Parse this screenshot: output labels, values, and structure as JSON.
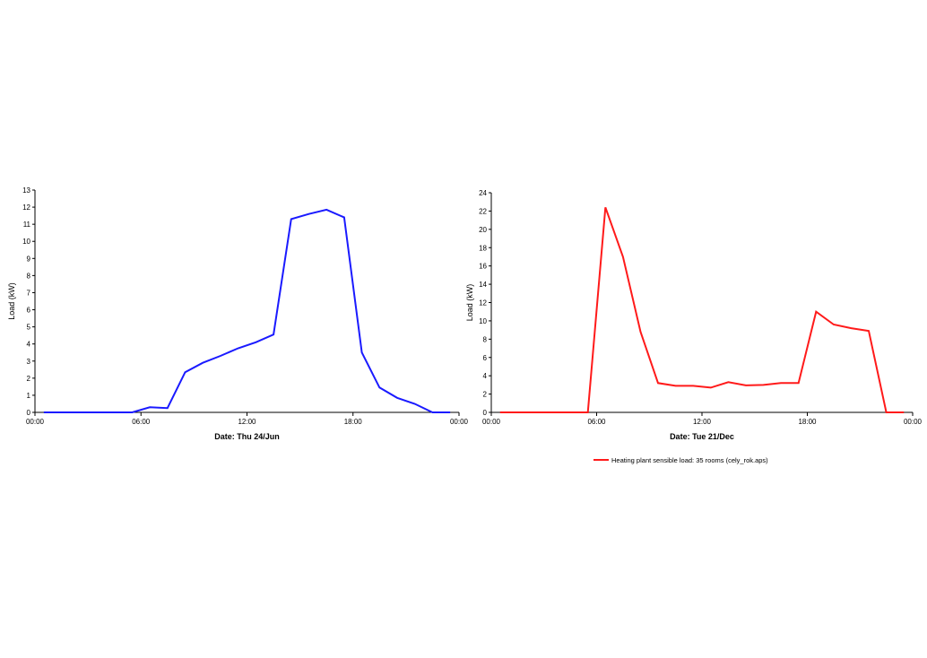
{
  "chart_data": [
    {
      "type": "line",
      "title": "",
      "xlabel": "Date: Thu 24/Jun",
      "ylabel": "Load (kW)",
      "ylim": [
        0,
        13
      ],
      "yticks": [
        0,
        1,
        2,
        3,
        4,
        5,
        6,
        7,
        8,
        9,
        10,
        11,
        12,
        13
      ],
      "xlim": [
        0,
        24
      ],
      "xticks": [
        {
          "v": 0,
          "label": "00:00"
        },
        {
          "v": 6,
          "label": "06:00"
        },
        {
          "v": 12,
          "label": "12:00"
        },
        {
          "v": 18,
          "label": "18:00"
        },
        {
          "v": 24,
          "label": "00:00"
        }
      ],
      "grid": false,
      "series": [
        {
          "color": "#1a1aff",
          "x": [
            0.5,
            1.5,
            2.5,
            3.5,
            4.5,
            5.5,
            6.5,
            7.5,
            8.5,
            9.5,
            10.5,
            11.5,
            12.5,
            13.5,
            14.5,
            15.5,
            16.5,
            17.5,
            18.5,
            19.5,
            20.5,
            21.5,
            22.5,
            23.5
          ],
          "y": [
            0,
            0,
            0,
            0,
            0,
            0,
            0.3,
            0.25,
            2.35,
            2.9,
            3.3,
            3.75,
            4.1,
            4.55,
            11.3,
            11.6,
            11.85,
            11.4,
            3.5,
            1.45,
            0.85,
            0.5,
            0,
            0
          ]
        }
      ]
    },
    {
      "type": "line",
      "title": "",
      "xlabel": "Date: Tue 21/Dec",
      "ylabel": "Load (kW)",
      "ylim": [
        0,
        24
      ],
      "yticks": [
        0,
        2,
        4,
        6,
        8,
        10,
        12,
        14,
        16,
        18,
        20,
        22,
        24
      ],
      "xlim": [
        0,
        24
      ],
      "xticks": [
        {
          "v": 0,
          "label": "00:00"
        },
        {
          "v": 6,
          "label": "06:00"
        },
        {
          "v": 12,
          "label": "12:00"
        },
        {
          "v": 18,
          "label": "18:00"
        },
        {
          "v": 24,
          "label": "00:00"
        }
      ],
      "grid": false,
      "legend_position": "bottom",
      "series": [
        {
          "name": "Heating plant sensible load: 35 rooms (cely_rok.aps)",
          "color": "#ff1a1a",
          "x": [
            0.5,
            1.5,
            2.5,
            3.5,
            4.5,
            5.5,
            6.5,
            7.5,
            8.5,
            9.5,
            10.5,
            11.5,
            12.5,
            13.5,
            14.5,
            15.5,
            16.5,
            17.5,
            18.5,
            19.5,
            20.5,
            21.5,
            22.5,
            23.5
          ],
          "y": [
            0,
            0,
            0,
            0,
            0,
            0,
            22.4,
            17,
            8.8,
            3.2,
            2.9,
            2.9,
            2.7,
            3.3,
            2.95,
            3.0,
            3.2,
            3.2,
            11.0,
            9.6,
            9.2,
            8.9,
            0,
            0
          ]
        }
      ]
    }
  ]
}
